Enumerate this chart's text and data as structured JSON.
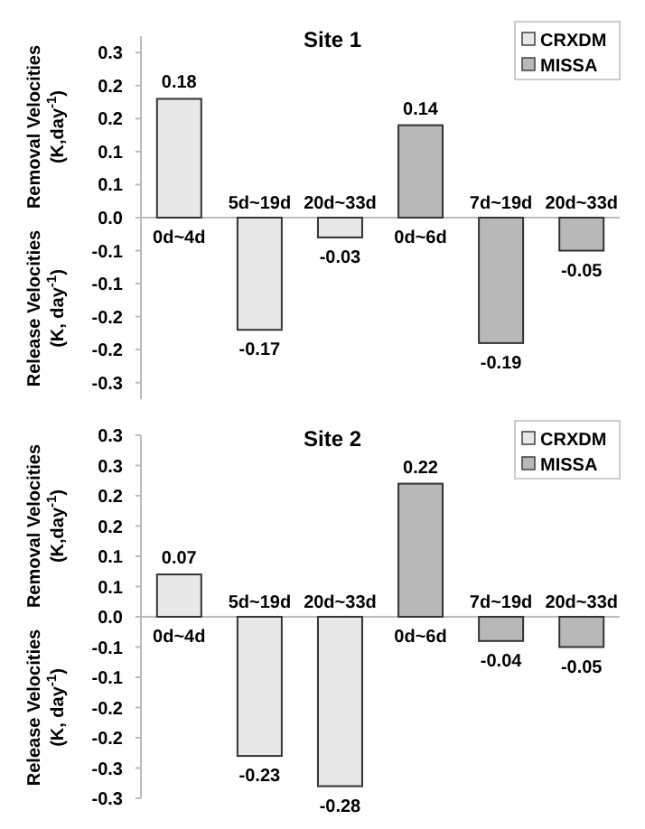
{
  "chart_data": [
    {
      "type": "bar",
      "title": "Site 1",
      "ylabel": "Removal Velocities (K,day$^{-1}$)",
      "annotations": [
        "Release  Velocities (K, day$^{-1}$)"
      ],
      "categories": [
        "0d~4d",
        "5d~19d",
        "20d~33d",
        "0d~6d",
        "7d~19d",
        "20d~33d"
      ],
      "series": [
        {
          "name": "CRXDM",
          "color": "#e8e8e8",
          "values": [
            0.18,
            -0.17,
            -0.03,
            null,
            null,
            null
          ]
        },
        {
          "name": "MISSA",
          "color": "#b8b8b8",
          "values": [
            null,
            null,
            null,
            0.14,
            -0.19,
            -0.05
          ]
        }
      ],
      "data_labels": true,
      "legend": "top right",
      "ylim": [
        -0.275,
        0.275
      ],
      "yticks": [
        {
          "value": 0.25,
          "label": "0.3"
        },
        {
          "value": 0.2,
          "label": "0.2"
        },
        {
          "value": 0.15,
          "label": "0.2"
        },
        {
          "value": 0.1,
          "label": "0.1"
        },
        {
          "value": 0.05,
          "label": "0.1"
        },
        {
          "value": 0,
          "label": "0.0"
        },
        {
          "value": -0.05,
          "label": "-0.1"
        },
        {
          "value": -0.1,
          "label": "-0.1"
        },
        {
          "value": -0.15,
          "label": "-0.2"
        },
        {
          "value": -0.2,
          "label": "-0.2"
        },
        {
          "value": -0.25,
          "label": "-0.3"
        }
      ]
    },
    {
      "type": "bar",
      "title": "Site 2",
      "ylabel": "Removal Velocities (K,day$^{-1}$)",
      "annotations": [
        "Release Velocities (K, day$^{-1}$)"
      ],
      "categories": [
        "0d~4d",
        "5d~19d",
        "20d~33d",
        "0d~6d",
        "7d~19d",
        "20d~33d"
      ],
      "series": [
        {
          "name": "CRXDM",
          "color": "#e8e8e8",
          "values": [
            0.07,
            -0.23,
            -0.28,
            null,
            null,
            null
          ]
        },
        {
          "name": "MISSA",
          "color": "#b8b8b8",
          "values": [
            null,
            null,
            null,
            0.22,
            -0.04,
            -0.05
          ]
        }
      ],
      "data_labels": true,
      "legend": "top right",
      "ylim": [
        -0.3,
        0.3
      ],
      "yticks": [
        {
          "value": 0.3,
          "label": "0.3"
        },
        {
          "value": 0.25,
          "label": "0.3"
        },
        {
          "value": 0.2,
          "label": "0.2"
        },
        {
          "value": 0.15,
          "label": "0.2"
        },
        {
          "value": 0.1,
          "label": "0.1"
        },
        {
          "value": 0.05,
          "label": "0.1"
        },
        {
          "value": 0,
          "label": "0.0"
        },
        {
          "value": -0.05,
          "label": "-0.1"
        },
        {
          "value": -0.1,
          "label": "-0.1"
        },
        {
          "value": -0.15,
          "label": "-0.2"
        },
        {
          "value": -0.2,
          "label": "-0.2"
        },
        {
          "value": -0.25,
          "label": "-0.3"
        },
        {
          "value": -0.3,
          "label": "-0.3"
        }
      ]
    }
  ]
}
